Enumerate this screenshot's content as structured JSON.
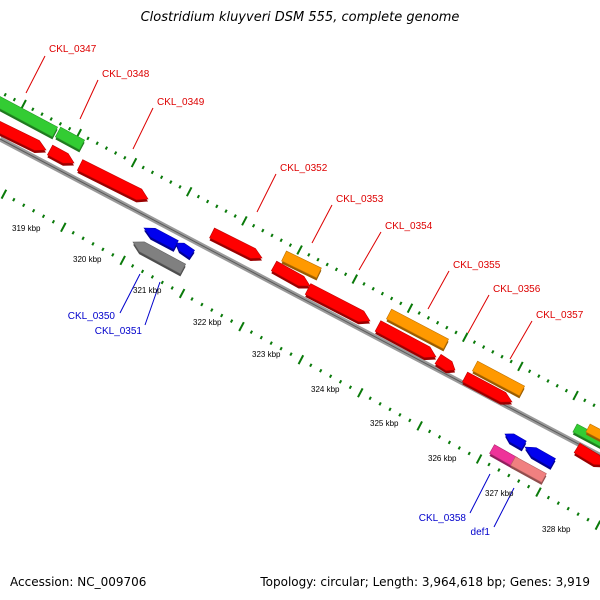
{
  "title": "Clostridium kluyveri DSM 555, complete genome",
  "footer": {
    "accession": "Accession: NC_009706",
    "summary": "Topology: circular; Length: 3,964,618 bp; Genes: 3,919"
  },
  "colors": {
    "backbone": "#7a7a7a",
    "forward_label": "#dd0000",
    "reverse_label": "#0000cc",
    "tick": "#0a7a0a",
    "cds": "#ff0000",
    "gene": "#ff9900",
    "feature": "#33cc33",
    "blue": "#0000ee",
    "gray": "#808080",
    "pink": "#ee3399",
    "salmon": "#f08080"
  },
  "scale_labels": [
    "319 kbp",
    "320 kbp",
    "321 kbp",
    "322 kbp",
    "323 kbp",
    "324 kbp",
    "325 kbp",
    "326 kbp",
    "327 kbp",
    "328 kbp"
  ],
  "gene_labels": {
    "forward": [
      "CKL_0347",
      "CKL_0348",
      "CKL_0349",
      "CKL_0352",
      "CKL_0353",
      "CKL_0354",
      "CKL_0355",
      "CKL_0356",
      "CKL_0357"
    ],
    "reverse": [
      "CKL_0350",
      "CKL_0351",
      "CKL_0358",
      "def1"
    ]
  }
}
